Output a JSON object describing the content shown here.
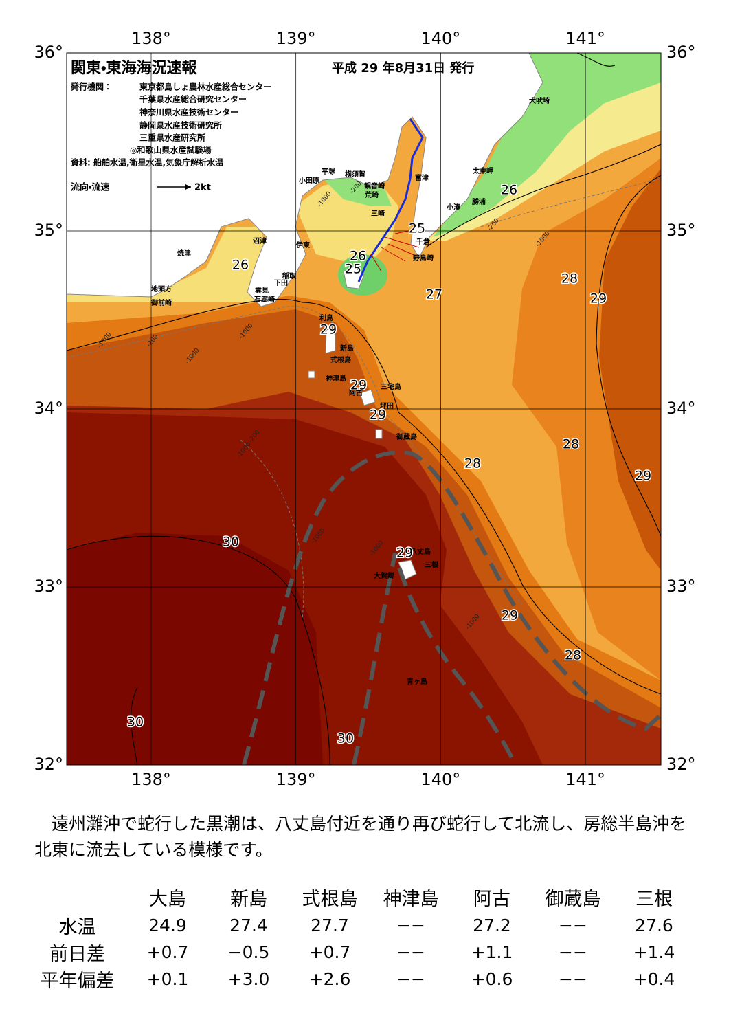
{
  "map": {
    "title": "関東・東海海況速報",
    "date": "平成 29 年8月31日 発行",
    "publisher_label": "発行機関：",
    "publishers": [
      "東京都島しょ農林水産総合センター",
      "千葉県水産総合研究センター",
      "神奈川県水産技術センター",
      "静岡県水産技術研究所",
      "三重県水産研究所",
      "◎和歌山県水産試験場"
    ],
    "source": "資料: 船舶水温,衛星水温,気象庁解析水温",
    "current_legend": "流向・流速",
    "current_scale": "2kt",
    "lon_ticks": [
      {
        "value": 138,
        "label": "138°"
      },
      {
        "value": 139,
        "label": "139°"
      },
      {
        "value": 140,
        "label": "140°"
      },
      {
        "value": 141,
        "label": "141°"
      }
    ],
    "lat_ticks": [
      {
        "value": 36,
        "label": "36°"
      },
      {
        "value": 35,
        "label": "35°"
      },
      {
        "value": 34,
        "label": "34°"
      },
      {
        "value": 33,
        "label": "33°"
      },
      {
        "value": 32,
        "label": "32°"
      }
    ],
    "places": [
      "犬吠埼",
      "太東岬",
      "勝浦",
      "小湊",
      "富津",
      "横須賀",
      "観音崎",
      "平塚",
      "小田原",
      "荒崎",
      "三崎",
      "千倉",
      "野島崎",
      "沼津",
      "伊東",
      "焼津",
      "稲取",
      "下田",
      "雲見",
      "石廊崎",
      "地頭方",
      "御前崎",
      "利島",
      "新島",
      "式根島",
      "神津島",
      "三宅島",
      "阿古",
      "坪田",
      "御蔵島",
      "八丈島",
      "三根",
      "大賀郷",
      "青ヶ島"
    ],
    "temperature_labels": [
      26,
      25,
      26,
      26,
      25,
      27,
      28,
      29,
      29,
      29,
      29,
      28,
      28,
      29,
      30,
      29,
      29,
      28,
      30,
      30
    ],
    "depth_labels": [
      "-1000",
      "-200",
      "-1000",
      "-200",
      "-1000",
      "-200",
      "-1000",
      "-1000",
      "-1000",
      "-200",
      "-1000",
      "-1000",
      "-1000"
    ]
  },
  "summary": "遠州灘沖で蛇行した黒潮は、八丈島付近を通り再び蛇行して北流し、房総半島沖を北東に流去している模様です。",
  "table": {
    "columns": [
      "大島",
      "新島",
      "式根島",
      "神津島",
      "阿古",
      "御蔵島",
      "三根"
    ],
    "rows": [
      {
        "label": "水温",
        "values": [
          "24.9",
          "27.4",
          "27.7",
          "−−",
          "27.2",
          "−−",
          "27.6"
        ]
      },
      {
        "label": "前日差",
        "values": [
          "+0.7",
          "−0.5",
          "+0.7",
          "−−",
          "+1.1",
          "−−",
          "+1.4"
        ]
      },
      {
        "label": "平年偏差",
        "values": [
          "+0.1",
          "+3.0",
          "+2.6",
          "−−",
          "+0.6",
          "−−",
          "+0.4"
        ]
      }
    ]
  }
}
